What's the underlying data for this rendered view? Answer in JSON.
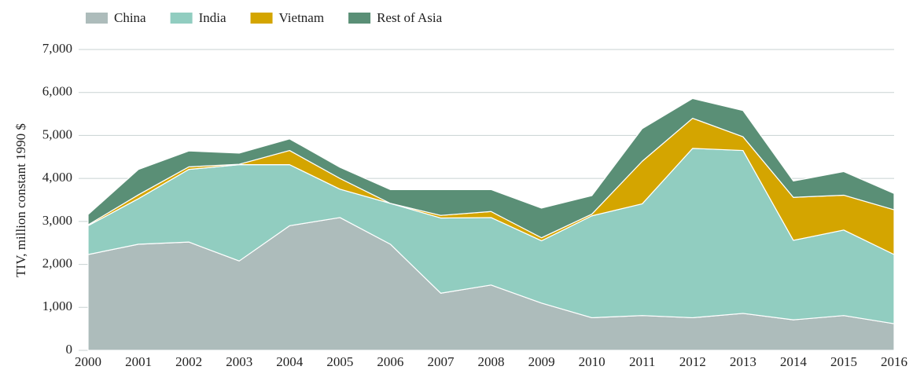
{
  "chart_data": {
    "type": "stacked-area",
    "y_label": "TIV, million constant 1990 $",
    "categories": [
      "2000",
      "2001",
      "2002",
      "2003",
      "2004",
      "2005",
      "2006",
      "2007",
      "2008",
      "2009",
      "2010",
      "2011",
      "2012",
      "2013",
      "2014",
      "2015",
      "2016"
    ],
    "series": [
      {
        "name": "China",
        "color": "#adbcbb",
        "values": [
          2230,
          2470,
          2520,
          2080,
          2900,
          3090,
          2470,
          1330,
          1520,
          1100,
          760,
          810,
          760,
          860,
          710,
          810,
          620
        ]
      },
      {
        "name": "India",
        "color": "#91cdc0",
        "values": [
          670,
          1060,
          1690,
          2240,
          1420,
          660,
          950,
          1750,
          1570,
          1450,
          2370,
          2600,
          3940,
          3790,
          1850,
          1990,
          1610
        ]
      },
      {
        "name": "Vietnam",
        "color": "#d4a500",
        "values": [
          20,
          90,
          60,
          10,
          330,
          250,
          0,
          60,
          140,
          70,
          40,
          990,
          700,
          320,
          1000,
          810,
          1040
        ]
      },
      {
        "name": "Rest of Asia",
        "color": "#5a8f76",
        "values": [
          240,
          590,
          370,
          260,
          270,
          260,
          320,
          600,
          510,
          690,
          430,
          760,
          460,
          610,
          380,
          550,
          380
        ]
      }
    ],
    "ylim": [
      0,
      7000
    ],
    "yticks": [
      0,
      {
        "value": 1000,
        "label": "1,000"
      },
      {
        "value": 2000,
        "label": "2,000"
      },
      {
        "value": 3000,
        "label": "3,000"
      },
      {
        "value": 4000,
        "label": "4,000"
      },
      {
        "value": 5000,
        "label": "5,000"
      },
      {
        "value": 6000,
        "label": "6,000"
      },
      {
        "value": 7000,
        "label": "7,000"
      }
    ],
    "grid": true
  }
}
